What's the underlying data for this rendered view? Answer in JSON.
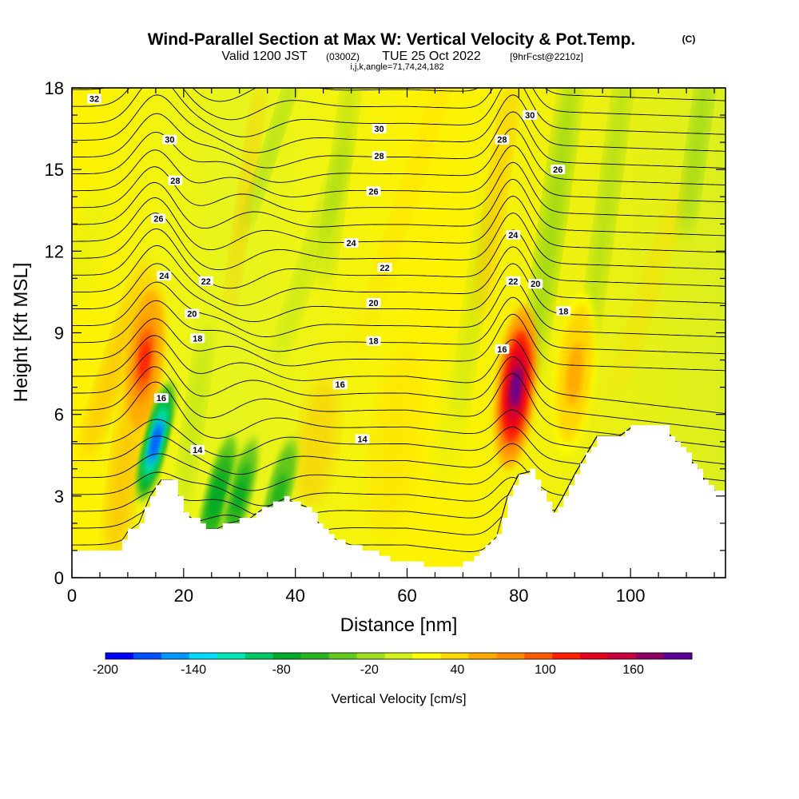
{
  "title": {
    "main": "Wind-Parallel Section at Max W: Vertical Velocity & Pot.Temp.",
    "copyright": "(C)",
    "valid_a": "Valid 1200 JST",
    "valid_b": "(0300Z)",
    "valid_c": "TUE 25 Oct 2022",
    "valid_d": "[9hrFcst@2210z]",
    "indices": "i,j,k,angle=71,74,24,182"
  },
  "chart_data": {
    "type": "heatmap",
    "xlabel": "Distance [nm]",
    "ylabel": "Height [Kft MSL]",
    "xlim": [
      0,
      117
    ],
    "ylim": [
      0,
      18
    ],
    "xticks": [
      "0",
      "20",
      "40",
      "60",
      "80",
      "100"
    ],
    "yticks": [
      "0",
      "3",
      "6",
      "9",
      "12",
      "15",
      "18"
    ],
    "colorbar": {
      "label": "Vertical Velocity [cm/s]",
      "range": [
        -200,
        200
      ],
      "step": 20,
      "ticks": [
        "-200",
        "-140",
        "-80",
        "-20",
        "40",
        "100",
        "160"
      ],
      "colors": [
        "#0000ff",
        "#0050ff",
        "#0096ff",
        "#00dcff",
        "#00e6b4",
        "#00c864",
        "#00aa28",
        "#28b41e",
        "#64c81e",
        "#a0dc1e",
        "#d2f01e",
        "#ffff00",
        "#ffd700",
        "#ffaa00",
        "#ff8c00",
        "#ff5a00",
        "#ff1e00",
        "#e6001e",
        "#c8003c",
        "#8c0064",
        "#5a0096"
      ]
    },
    "terrain_kft": [
      [
        0,
        1
      ],
      [
        8,
        1
      ],
      [
        10,
        1.7
      ],
      [
        12,
        2
      ],
      [
        14,
        3
      ],
      [
        16,
        3.6
      ],
      [
        18,
        3.6
      ],
      [
        20,
        2.4
      ],
      [
        24,
        1.8
      ],
      [
        26,
        1.8
      ],
      [
        28,
        2
      ],
      [
        32,
        2.2
      ],
      [
        34,
        2.5
      ],
      [
        36,
        2.7
      ],
      [
        38,
        2.9
      ],
      [
        42,
        2.6
      ],
      [
        46,
        1.5
      ],
      [
        50,
        1.2
      ],
      [
        56,
        0.8
      ],
      [
        58,
        0.5
      ],
      [
        62,
        0.5
      ],
      [
        66,
        0.3
      ],
      [
        70,
        0.5
      ],
      [
        72,
        0.7
      ],
      [
        76,
        1.5
      ],
      [
        78,
        3
      ],
      [
        80,
        3.8
      ],
      [
        82,
        3.9
      ],
      [
        84,
        3.2
      ],
      [
        86,
        2.3
      ],
      [
        88,
        3
      ],
      [
        90,
        3.8
      ],
      [
        94,
        5.2
      ],
      [
        98,
        5.2
      ],
      [
        100,
        5.5
      ],
      [
        106,
        5.5
      ],
      [
        108,
        5
      ],
      [
        110,
        4.5
      ],
      [
        112,
        4
      ],
      [
        114,
        3.3
      ],
      [
        117,
        3
      ]
    ],
    "updrafts": [
      {
        "x": 13,
        "y": 8,
        "w_cm_s": 110
      },
      {
        "x": 79.5,
        "y": 7,
        "w_cm_s": 190
      },
      {
        "x": 90,
        "y": 7.5,
        "w_cm_s": 60
      }
    ],
    "downdrafts": [
      {
        "x": 15,
        "y": 5,
        "w_cm_s": -170
      },
      {
        "x": 26,
        "y": 3,
        "w_cm_s": -80
      },
      {
        "x": 30,
        "y": 3,
        "w_cm_s": -70
      },
      {
        "x": 37,
        "y": 3,
        "w_cm_s": -60
      }
    ],
    "isentrope_labels": [
      {
        "text": "32",
        "x": 4,
        "y": 17.6
      },
      {
        "text": "30",
        "x": 17.5,
        "y": 16.1
      },
      {
        "text": "30",
        "x": 55,
        "y": 16.5
      },
      {
        "text": "30",
        "x": 82,
        "y": 17.0
      },
      {
        "text": "28",
        "x": 18.5,
        "y": 14.6
      },
      {
        "text": "28",
        "x": 55,
        "y": 15.5
      },
      {
        "text": "28",
        "x": 77,
        "y": 16.1
      },
      {
        "text": "26",
        "x": 15.5,
        "y": 13.2
      },
      {
        "text": "26",
        "x": 54,
        "y": 14.2
      },
      {
        "text": "26",
        "x": 87,
        "y": 15.0
      },
      {
        "text": "24",
        "x": 16.5,
        "y": 11.1
      },
      {
        "text": "24",
        "x": 50,
        "y": 12.3
      },
      {
        "text": "24",
        "x": 79,
        "y": 12.6
      },
      {
        "text": "22",
        "x": 24,
        "y": 10.9
      },
      {
        "text": "22",
        "x": 56,
        "y": 11.4
      },
      {
        "text": "22",
        "x": 79,
        "y": 10.9
      },
      {
        "text": "20",
        "x": 21.5,
        "y": 9.7
      },
      {
        "text": "20",
        "x": 54,
        "y": 10.1
      },
      {
        "text": "20",
        "x": 83,
        "y": 10.8
      },
      {
        "text": "18",
        "x": 22.5,
        "y": 8.8
      },
      {
        "text": "18",
        "x": 54,
        "y": 8.7
      },
      {
        "text": "18",
        "x": 88,
        "y": 9.8
      },
      {
        "text": "16",
        "x": 16,
        "y": 6.6
      },
      {
        "text": "16",
        "x": 48,
        "y": 7.1
      },
      {
        "text": "16",
        "x": 77,
        "y": 8.4
      },
      {
        "text": "14",
        "x": 22.5,
        "y": 4.7
      },
      {
        "text": "14",
        "x": 52,
        "y": 5.1
      }
    ]
  }
}
